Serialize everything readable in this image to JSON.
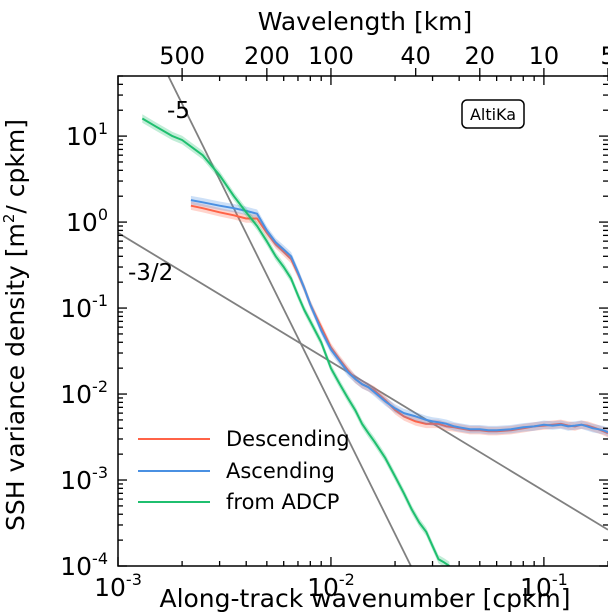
{
  "chart_data": {
    "type": "line",
    "top_axis_title": "Wavelength [km]",
    "top_ticks": [
      {
        "label": "500",
        "wavelength_km": 500
      },
      {
        "label": "200",
        "wavelength_km": 200
      },
      {
        "label": "100",
        "wavelength_km": 100
      },
      {
        "label": "40",
        "wavelength_km": 40
      },
      {
        "label": "20",
        "wavelength_km": 20
      },
      {
        "label": "10",
        "wavelength_km": 10
      },
      {
        "label": "5",
        "wavelength_km": 5
      }
    ],
    "xlabel": "Along-track wavenumber [cpkm]",
    "ylabel_main": "SSH variance density [m",
    "ylabel_sup": "2",
    "ylabel_tail": "/ cpkm]",
    "xscale": "log",
    "yscale": "log",
    "xlim": [
      0.001,
      0.2
    ],
    "ylim": [
      0.0001,
      50
    ],
    "x_ticks": [
      {
        "base": "10",
        "exp": "-3",
        "value": 0.001
      },
      {
        "base": "10",
        "exp": "-2",
        "value": 0.01
      },
      {
        "base": "10",
        "exp": "-1",
        "value": 0.1
      }
    ],
    "y_ticks": [
      {
        "base": "10",
        "exp": "1",
        "value": 10
      },
      {
        "base": "10",
        "exp": "0",
        "value": 1
      },
      {
        "base": "10",
        "exp": "-1",
        "value": 0.1
      },
      {
        "base": "10",
        "exp": "-2",
        "value": 0.01
      },
      {
        "base": "10",
        "exp": "-3",
        "value": 0.001
      },
      {
        "base": "10",
        "exp": "-4",
        "value": 0.0001
      }
    ],
    "annotation_box": "AltiKa",
    "reference_lines": [
      {
        "label": "-5",
        "slope": -5,
        "x": [
          0.0015,
          0.03
        ],
        "y": [
          100,
          3.1e-05
        ]
      },
      {
        "label": "-3/2",
        "slope": -1.5,
        "x": [
          0.001,
          0.2
        ],
        "y": [
          0.75,
          0.000264
        ]
      }
    ],
    "series": [
      {
        "name": "Descending",
        "color": "#ff6347",
        "x": [
          0.0022,
          0.0025,
          0.003,
          0.0035,
          0.004,
          0.0045,
          0.005,
          0.0055,
          0.006,
          0.0065,
          0.007,
          0.0075,
          0.008,
          0.009,
          0.01,
          0.011,
          0.012,
          0.013,
          0.014,
          0.015,
          0.016,
          0.018,
          0.02,
          0.022,
          0.025,
          0.028,
          0.03,
          0.032,
          0.035,
          0.038,
          0.04,
          0.045,
          0.05,
          0.055,
          0.06,
          0.07,
          0.08,
          0.09,
          0.1,
          0.11,
          0.12,
          0.13,
          0.14,
          0.15,
          0.16,
          0.17,
          0.18,
          0.19,
          0.2
        ],
        "y": [
          1.55,
          1.45,
          1.3,
          1.2,
          1.1,
          1.1,
          0.75,
          0.55,
          0.45,
          0.37,
          0.25,
          0.17,
          0.11,
          0.06,
          0.035,
          0.025,
          0.019,
          0.015,
          0.013,
          0.012,
          0.011,
          0.0085,
          0.0065,
          0.0055,
          0.0048,
          0.0045,
          0.0045,
          0.0045,
          0.0042,
          0.0041,
          0.004,
          0.0038,
          0.0038,
          0.0037,
          0.0037,
          0.0038,
          0.004,
          0.0042,
          0.0043,
          0.0044,
          0.0045,
          0.0043,
          0.0042,
          0.0044,
          0.0043,
          0.0041,
          0.0039,
          0.0037,
          0.0035
        ]
      },
      {
        "name": "Ascending",
        "color": "#4a90e2",
        "x": [
          0.0022,
          0.0025,
          0.003,
          0.0035,
          0.004,
          0.0045,
          0.005,
          0.0055,
          0.006,
          0.0065,
          0.007,
          0.0075,
          0.008,
          0.009,
          0.01,
          0.011,
          0.012,
          0.013,
          0.014,
          0.015,
          0.016,
          0.018,
          0.02,
          0.022,
          0.025,
          0.028,
          0.03,
          0.032,
          0.035,
          0.038,
          0.04,
          0.045,
          0.05,
          0.055,
          0.06,
          0.07,
          0.08,
          0.09,
          0.1,
          0.11,
          0.12,
          0.13,
          0.14,
          0.15,
          0.16,
          0.17,
          0.18,
          0.19,
          0.2
        ],
        "y": [
          1.8,
          1.7,
          1.55,
          1.45,
          1.35,
          1.25,
          0.8,
          0.58,
          0.48,
          0.4,
          0.26,
          0.17,
          0.11,
          0.055,
          0.033,
          0.024,
          0.018,
          0.015,
          0.013,
          0.012,
          0.0105,
          0.0082,
          0.0068,
          0.006,
          0.0055,
          0.005,
          0.0048,
          0.0047,
          0.0045,
          0.0042,
          0.0041,
          0.0039,
          0.0039,
          0.0038,
          0.0038,
          0.0039,
          0.0041,
          0.0042,
          0.0044,
          0.0043,
          0.0044,
          0.0042,
          0.0043,
          0.0044,
          0.0042,
          0.004,
          0.0039,
          0.0038,
          0.0036
        ]
      },
      {
        "name": "from ADCP",
        "color": "#1fbf6f",
        "x": [
          0.0013,
          0.0015,
          0.0018,
          0.002,
          0.0025,
          0.003,
          0.0035,
          0.004,
          0.0045,
          0.005,
          0.0055,
          0.006,
          0.0065,
          0.007,
          0.0075,
          0.008,
          0.009,
          0.01,
          0.011,
          0.012,
          0.013,
          0.014,
          0.015,
          0.016,
          0.018,
          0.02,
          0.022,
          0.024,
          0.026,
          0.028,
          0.03,
          0.032,
          0.034,
          0.036
        ],
        "y": [
          16,
          13,
          10,
          9,
          6,
          3.5,
          2,
          1.3,
          0.9,
          0.6,
          0.4,
          0.3,
          0.22,
          0.14,
          0.095,
          0.07,
          0.04,
          0.02,
          0.013,
          0.009,
          0.0065,
          0.0045,
          0.0035,
          0.0028,
          0.0018,
          0.0011,
          0.0007,
          0.00045,
          0.00032,
          0.00025,
          0.00017,
          0.00012,
          0.00011,
          0.0001
        ]
      }
    ],
    "legend": {
      "location": "lower-left",
      "entries": [
        {
          "label": "Descending",
          "color": "#ff6347"
        },
        {
          "label": "Ascending",
          "color": "#4a90e2"
        },
        {
          "label": "from ADCP",
          "color": "#1fbf6f"
        }
      ]
    },
    "grid": false
  }
}
